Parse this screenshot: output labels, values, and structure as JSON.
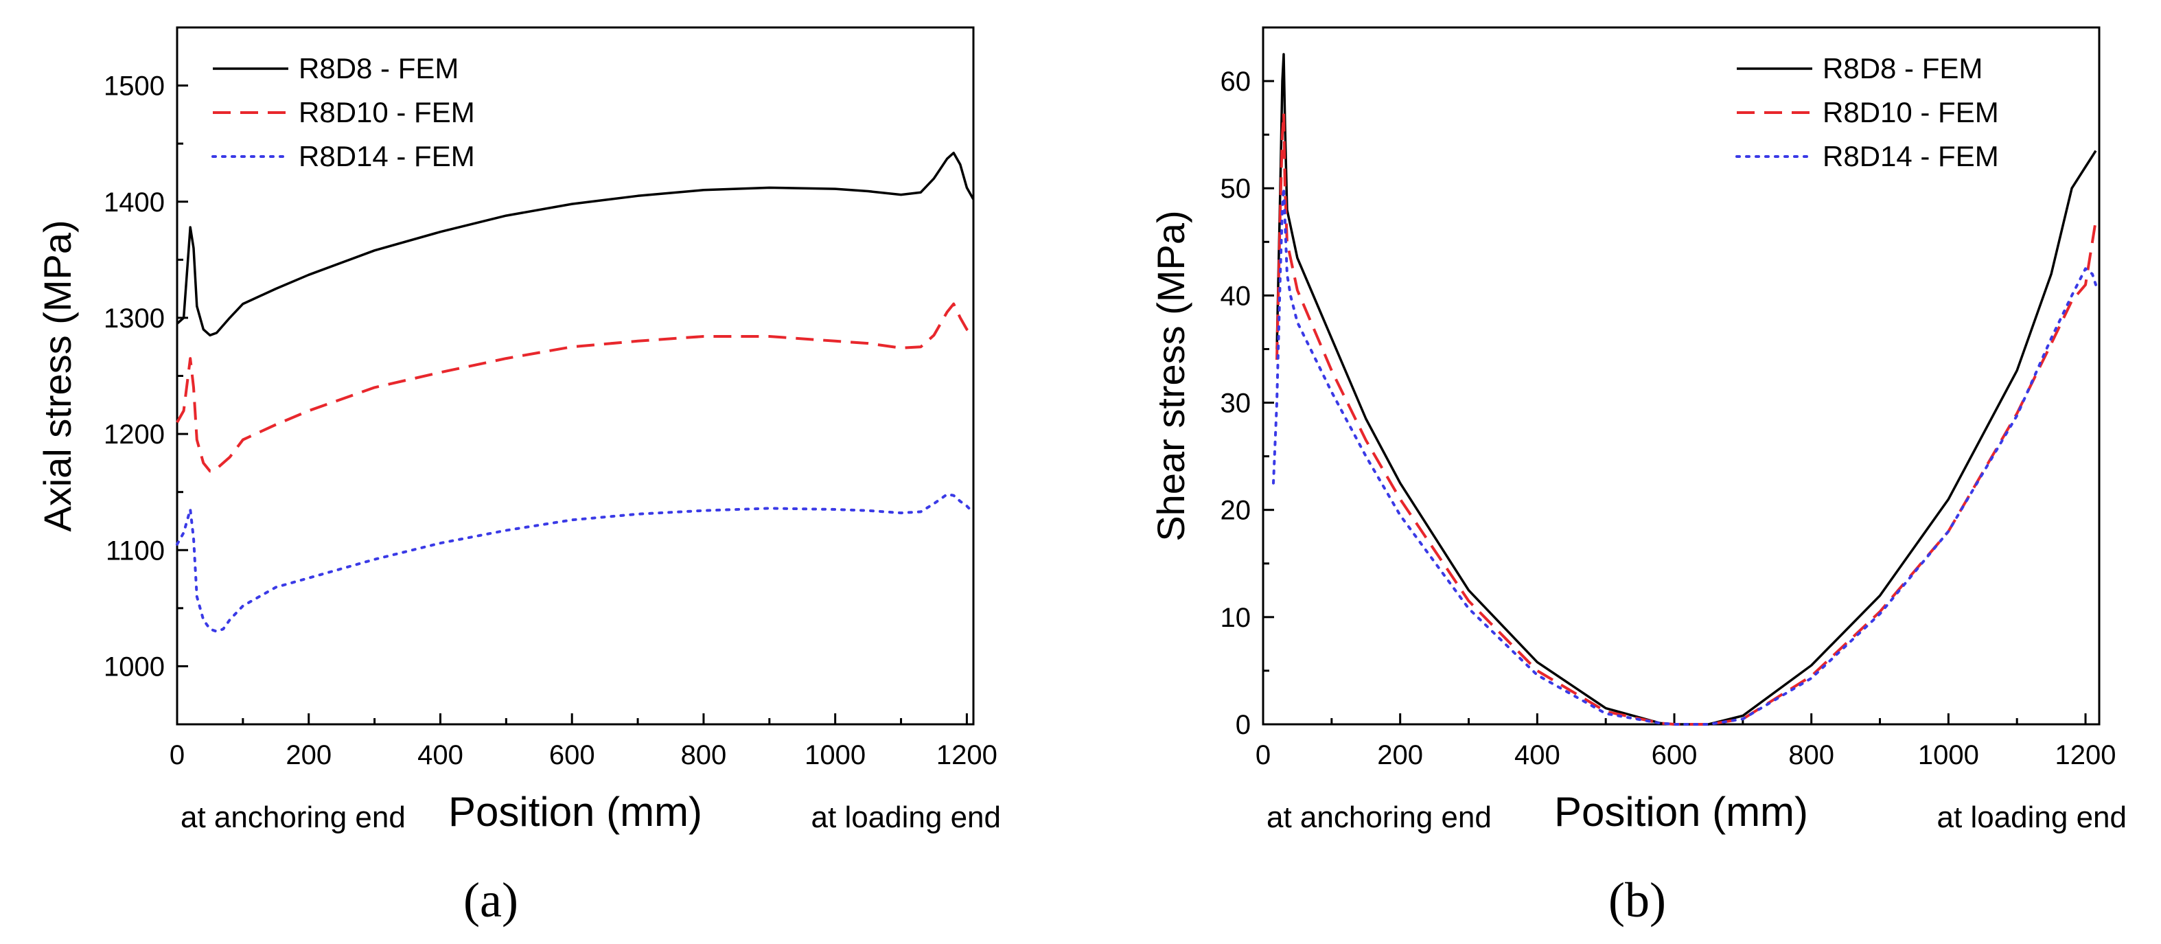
{
  "panels": [
    {
      "panel_label": "(a)",
      "left_note": "at anchoring end",
      "right_note": "at loading end",
      "chart_data": {
        "type": "line",
        "title": "",
        "xlabel": "Position (mm)",
        "ylabel": "Axial stress (MPa)",
        "xlim": [
          0,
          1210
        ],
        "ylim": [
          950,
          1550
        ],
        "xticks": [
          0,
          200,
          400,
          600,
          800,
          1000,
          1200
        ],
        "yticks": [
          1000,
          1100,
          1200,
          1300,
          1400,
          1500
        ],
        "grid": false,
        "legend_position": "top-left",
        "series": [
          {
            "name": "R8D8 - FEM",
            "color": "#000000",
            "dash": "solid",
            "x": [
              0,
              10,
              20,
              25,
              30,
              40,
              50,
              60,
              80,
              100,
              150,
              200,
              300,
              400,
              500,
              600,
              700,
              800,
              900,
              1000,
              1050,
              1100,
              1130,
              1150,
              1170,
              1180,
              1190,
              1200,
              1210
            ],
            "y": [
              1295,
              1300,
              1378,
              1360,
              1310,
              1290,
              1285,
              1287,
              1300,
              1312,
              1325,
              1337,
              1358,
              1374,
              1388,
              1398,
              1405,
              1410,
              1412,
              1411,
              1409,
              1406,
              1408,
              1420,
              1437,
              1442,
              1432,
              1412,
              1402
            ]
          },
          {
            "name": "R8D10 - FEM",
            "color": "#e8272c",
            "dash": "dashed",
            "x": [
              0,
              10,
              20,
              25,
              30,
              40,
              50,
              60,
              80,
              100,
              150,
              200,
              300,
              400,
              500,
              600,
              700,
              800,
              900,
              1000,
              1050,
              1100,
              1130,
              1150,
              1170,
              1180,
              1190,
              1200,
              1210
            ],
            "y": [
              1210,
              1220,
              1265,
              1240,
              1195,
              1175,
              1168,
              1170,
              1180,
              1195,
              1208,
              1220,
              1240,
              1253,
              1265,
              1275,
              1280,
              1284,
              1284,
              1280,
              1278,
              1274,
              1275,
              1285,
              1305,
              1312,
              1300,
              1290,
              1285
            ]
          },
          {
            "name": "R8D14 - FEM",
            "color": "#3a3ae6",
            "dash": "dotted",
            "x": [
              0,
              10,
              20,
              25,
              30,
              40,
              50,
              60,
              70,
              80,
              100,
              150,
              200,
              300,
              400,
              500,
              600,
              700,
              800,
              900,
              1000,
              1050,
              1100,
              1130,
              1150,
              1170,
              1180,
              1190,
              1200,
              1210
            ],
            "y": [
              1105,
              1115,
              1135,
              1110,
              1060,
              1040,
              1032,
              1030,
              1032,
              1040,
              1052,
              1068,
              1076,
              1092,
              1106,
              1117,
              1126,
              1131,
              1134,
              1136,
              1135,
              1134,
              1132,
              1133,
              1140,
              1148,
              1147,
              1142,
              1138,
              1132
            ]
          }
        ]
      }
    },
    {
      "panel_label": "(b)",
      "left_note": "at anchoring end",
      "right_note": "at loading end",
      "chart_data": {
        "type": "line",
        "title": "",
        "xlabel": "Position (mm)",
        "ylabel": "Shear stress (MPa)",
        "xlim": [
          0,
          1220
        ],
        "ylim": [
          0,
          65
        ],
        "xticks": [
          0,
          200,
          400,
          600,
          800,
          1000,
          1200
        ],
        "yticks": [
          0,
          10,
          20,
          30,
          40,
          50,
          60
        ],
        "grid": false,
        "legend_position": "top-right",
        "series": [
          {
            "name": "R8D8 - FEM",
            "color": "#000000",
            "dash": "solid",
            "x": [
              20,
              25,
              28,
              30,
              32,
              35,
              40,
              50,
              100,
              150,
              200,
              300,
              400,
              500,
              580,
              600,
              650,
              700,
              800,
              900,
              1000,
              1100,
              1150,
              1180,
              1200,
              1215
            ],
            "y": [
              35,
              50,
              60,
              62.5,
              56,
              48,
              46.5,
              43.5,
              36,
              28.5,
              22.5,
              12.5,
              5.8,
              1.5,
              0.1,
              0,
              0,
              0.8,
              5.5,
              12,
              21,
              33,
              42,
              50,
              52,
              53.5
            ]
          },
          {
            "name": "R8D10 - FEM",
            "color": "#e8272c",
            "dash": "dashed",
            "x": [
              20,
              25,
              28,
              30,
              32,
              35,
              40,
              50,
              100,
              150,
              200,
              300,
              400,
              500,
              580,
              600,
              650,
              700,
              800,
              900,
              1000,
              1100,
              1150,
              1180,
              1200,
              1210,
              1215
            ],
            "y": [
              34,
              48,
              55,
              57,
              50,
              45,
              43.5,
              40.5,
              33,
              26.5,
              21,
              11.5,
              5,
              1.2,
              0.1,
              0,
              0,
              0.5,
              4.5,
              10.5,
              18,
              29,
              35.5,
              39.5,
              41,
              45,
              47
            ]
          },
          {
            "name": "R8D14 - FEM",
            "color": "#3a3ae6",
            "dash": "dotted",
            "x": [
              15,
              20,
              25,
              28,
              30,
              32,
              35,
              40,
              50,
              100,
              150,
              200,
              300,
              400,
              500,
              580,
              600,
              650,
              700,
              800,
              900,
              1000,
              1100,
              1150,
              1180,
              1200,
              1210,
              1215
            ],
            "y": [
              22.5,
              30,
              42,
              48,
              50,
              47,
              42,
              40,
              37.5,
              31,
              25,
              19.5,
              10.8,
              4.6,
              1,
              0.1,
              0,
              0,
              0.5,
              4.3,
              10.3,
              18,
              28.8,
              36,
              40,
              42.5,
              42,
              41
            ]
          }
        ]
      }
    }
  ]
}
